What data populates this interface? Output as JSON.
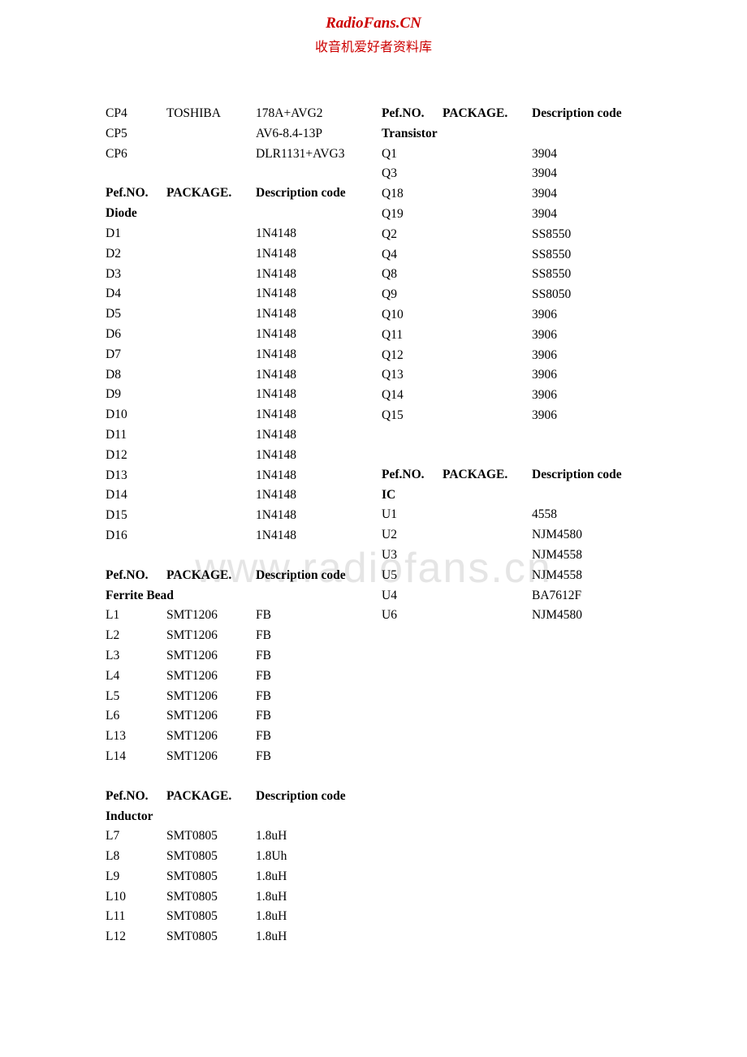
{
  "header": {
    "title": "RadioFans.CN",
    "subtitle": "收音机爱好者资料库"
  },
  "watermark": "www.radiofans.cn",
  "columns_header": {
    "ref": "Pef.NO.",
    "pkg": "PACKAGE.",
    "desc": "Description code"
  },
  "left": {
    "top": [
      {
        "ref": "CP4",
        "pkg": "TOSHIBA",
        "desc": "178A+AVG2"
      },
      {
        "ref": "CP5",
        "pkg": "",
        "desc": "AV6-8.4-13P"
      },
      {
        "ref": "CP6",
        "pkg": "",
        "desc": "DLR1131+AVG3"
      }
    ],
    "diode": {
      "group": "Diode",
      "rows": [
        {
          "ref": "D1",
          "pkg": "",
          "desc": "1N4148"
        },
        {
          "ref": "D2",
          "pkg": "",
          "desc": "1N4148"
        },
        {
          "ref": "D3",
          "pkg": "",
          "desc": "1N4148"
        },
        {
          "ref": "D4",
          "pkg": "",
          "desc": "1N4148"
        },
        {
          "ref": "D5",
          "pkg": "",
          "desc": "1N4148"
        },
        {
          "ref": "D6",
          "pkg": "",
          "desc": "1N4148"
        },
        {
          "ref": "D7",
          "pkg": "",
          "desc": "1N4148"
        },
        {
          "ref": "D8",
          "pkg": "",
          "desc": "1N4148"
        },
        {
          "ref": "D9",
          "pkg": "",
          "desc": "1N4148"
        },
        {
          "ref": "D10",
          "pkg": "",
          "desc": "1N4148"
        },
        {
          "ref": "D11",
          "pkg": "",
          "desc": "1N4148"
        },
        {
          "ref": "D12",
          "pkg": "",
          "desc": "1N4148"
        },
        {
          "ref": "D13",
          "pkg": "",
          "desc": "1N4148"
        },
        {
          "ref": "D14",
          "pkg": "",
          "desc": "1N4148"
        },
        {
          "ref": "D15",
          "pkg": "",
          "desc": "1N4148"
        },
        {
          "ref": "D16",
          "pkg": "",
          "desc": "1N4148"
        }
      ]
    },
    "ferrite": {
      "group": "Ferrite Bead",
      "rows": [
        {
          "ref": "L1",
          "pkg": "SMT1206",
          "desc": "FB"
        },
        {
          "ref": "L2",
          "pkg": "SMT1206",
          "desc": "FB"
        },
        {
          "ref": "L3",
          "pkg": "SMT1206",
          "desc": "FB"
        },
        {
          "ref": "L4",
          "pkg": "SMT1206",
          "desc": "FB"
        },
        {
          "ref": "L5",
          "pkg": "SMT1206",
          "desc": "FB"
        },
        {
          "ref": "L6",
          "pkg": "SMT1206",
          "desc": "FB"
        },
        {
          "ref": "L13",
          "pkg": "SMT1206",
          "desc": "FB"
        },
        {
          "ref": "L14",
          "pkg": "SMT1206",
          "desc": "FB"
        }
      ]
    },
    "inductor": {
      "group": "Inductor",
      "rows": [
        {
          "ref": "L7",
          "pkg": "SMT0805",
          "desc": "1.8uH"
        },
        {
          "ref": "L8",
          "pkg": "SMT0805",
          "desc": "1.8Uh"
        },
        {
          "ref": "L9",
          "pkg": "SMT0805",
          "desc": "1.8uH"
        },
        {
          "ref": "L10",
          "pkg": "SMT0805",
          "desc": "1.8uH"
        },
        {
          "ref": "L11",
          "pkg": "SMT0805",
          "desc": "1.8uH"
        },
        {
          "ref": "L12",
          "pkg": "SMT0805",
          "desc": "1.8uH"
        }
      ]
    }
  },
  "right": {
    "transistor": {
      "group": "Transistor",
      "rows": [
        {
          "ref": "Q1",
          "pkg": "",
          "desc": "3904"
        },
        {
          "ref": "Q3",
          "pkg": "",
          "desc": "3904"
        },
        {
          "ref": "Q18",
          "pkg": "",
          "desc": "3904"
        },
        {
          "ref": "Q19",
          "pkg": "",
          "desc": "3904"
        },
        {
          "ref": "Q2",
          "pkg": "",
          "desc": "SS8550"
        },
        {
          "ref": "Q4",
          "pkg": "",
          "desc": "SS8550"
        },
        {
          "ref": "Q8",
          "pkg": "",
          "desc": "SS8550"
        },
        {
          "ref": "Q9",
          "pkg": "",
          "desc": "SS8050"
        },
        {
          "ref": "Q10",
          "pkg": "",
          "desc": "3906"
        },
        {
          "ref": "Q11",
          "pkg": "",
          "desc": "3906"
        },
        {
          "ref": "Q12",
          "pkg": "",
          "desc": "3906"
        },
        {
          "ref": "Q13",
          "pkg": "",
          "desc": "3906"
        },
        {
          "ref": "Q14",
          "pkg": "",
          "desc": "3906"
        },
        {
          "ref": "Q15",
          "pkg": "",
          "desc": "3906"
        }
      ]
    },
    "ic": {
      "group": "IC",
      "rows": [
        {
          "ref": "U1",
          "pkg": "",
          "desc": "4558"
        },
        {
          "ref": "U2",
          "pkg": "",
          "desc": "NJM4580"
        },
        {
          "ref": "U3",
          "pkg": "",
          "desc": "NJM4558"
        },
        {
          "ref": "U5",
          "pkg": "",
          "desc": "NJM4558"
        },
        {
          "ref": "U4",
          "pkg": "",
          "desc": "BA7612F"
        },
        {
          "ref": "U6",
          "pkg": "",
          "desc": "NJM4580"
        }
      ]
    }
  }
}
